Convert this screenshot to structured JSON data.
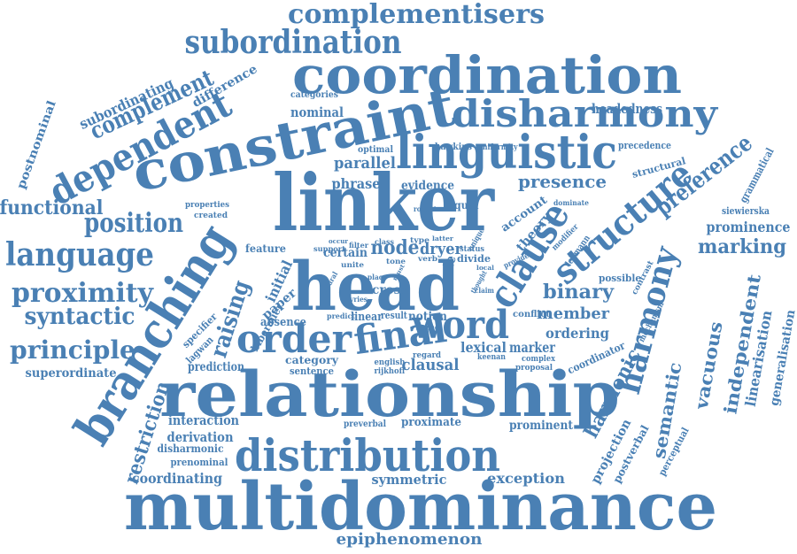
{
  "color": "#4a80b4",
  "words": [
    {
      "id": "multidominance",
      "text": "multidominance"
    },
    {
      "id": "relationship",
      "text": "relationship"
    },
    {
      "id": "linker",
      "text": "linker"
    },
    {
      "id": "head",
      "text": "head"
    },
    {
      "id": "coordination",
      "text": "coordination"
    },
    {
      "id": "constraint",
      "text": "constraint"
    },
    {
      "id": "distribution",
      "text": "distribution"
    },
    {
      "id": "branching",
      "text": "branching"
    },
    {
      "id": "disharmony",
      "text": "disharmony"
    },
    {
      "id": "linguistic",
      "text": "linguistic"
    },
    {
      "id": "clause",
      "text": "clause"
    },
    {
      "id": "structure",
      "text": "structure"
    },
    {
      "id": "harmony",
      "text": "harmony"
    },
    {
      "id": "order",
      "text": "order"
    },
    {
      "id": "final",
      "text": "final"
    },
    {
      "id": "word",
      "text": "word"
    },
    {
      "id": "dependent",
      "text": "dependent"
    },
    {
      "id": "subordination",
      "text": "subordination"
    },
    {
      "id": "complementisers",
      "text": "complementisers"
    },
    {
      "id": "language",
      "text": "language"
    },
    {
      "id": "proximity",
      "text": "proximity"
    },
    {
      "id": "position",
      "text": "position"
    },
    {
      "id": "principle",
      "text": "principle"
    },
    {
      "id": "syntactic",
      "text": "syntactic"
    },
    {
      "id": "functional",
      "text": "functional"
    },
    {
      "id": "complement",
      "text": "complement"
    },
    {
      "id": "subordinating",
      "text": "subordinating"
    },
    {
      "id": "postnominal",
      "text": "postnominal"
    },
    {
      "id": "difference",
      "text": "difference"
    },
    {
      "id": "superordinate",
      "text": "superordinate"
    },
    {
      "id": "restriction",
      "text": "restriction"
    },
    {
      "id": "raising",
      "text": "raising"
    },
    {
      "id": "parallel",
      "text": "parallel"
    },
    {
      "id": "phrase",
      "text": "phrase"
    },
    {
      "id": "presence",
      "text": "presence"
    },
    {
      "id": "headedness",
      "text": "headedness"
    },
    {
      "id": "categories",
      "text": "categories"
    },
    {
      "id": "nominal",
      "text": "nominal"
    },
    {
      "id": "optimal",
      "text": "optimal"
    },
    {
      "id": "hawkins",
      "text": "hawkins"
    },
    {
      "id": "uniformity",
      "text": "uniformity"
    },
    {
      "id": "precedence",
      "text": "precedence"
    },
    {
      "id": "structural",
      "text": "structural"
    },
    {
      "id": "preference",
      "text": "preference"
    },
    {
      "id": "grammatical",
      "text": "grammatical"
    },
    {
      "id": "siewierska",
      "text": "siewierska"
    },
    {
      "id": "prominence",
      "text": "prominence"
    },
    {
      "id": "marking",
      "text": "marking"
    },
    {
      "id": "independent",
      "text": "independent"
    },
    {
      "id": "linearisation",
      "text": "linearisation"
    },
    {
      "id": "generalisation",
      "text": "generalisation"
    },
    {
      "id": "vacuous",
      "text": "vacuous"
    },
    {
      "id": "semantic",
      "text": "semantic"
    },
    {
      "id": "harmonic",
      "text": "harmonic"
    },
    {
      "id": "binary",
      "text": "binary"
    },
    {
      "id": "member",
      "text": "member"
    },
    {
      "id": "ordering",
      "text": "ordering"
    },
    {
      "id": "possible",
      "text": "possible"
    },
    {
      "id": "coordinator",
      "text": "coordinator"
    },
    {
      "id": "theory",
      "text": "theory"
    },
    {
      "id": "account",
      "text": "account"
    },
    {
      "id": "evidence",
      "text": "evidence"
    },
    {
      "id": "equal",
      "text": "equal"
    },
    {
      "id": "node",
      "text": "node"
    },
    {
      "id": "dryer",
      "text": "dryer"
    },
    {
      "id": "rule",
      "text": "rule"
    },
    {
      "id": "divide",
      "text": "divide"
    },
    {
      "id": "certain",
      "text": "certain"
    },
    {
      "id": "initial",
      "text": "initial"
    },
    {
      "id": "paper",
      "text": "paper"
    },
    {
      "id": "biberauer",
      "text": "biberauer"
    },
    {
      "id": "feature",
      "text": "feature"
    },
    {
      "id": "properties",
      "text": "properties"
    },
    {
      "id": "created",
      "text": "created"
    },
    {
      "id": "cross",
      "text": "cross"
    },
    {
      "id": "notion",
      "text": "notion"
    },
    {
      "id": "absence",
      "text": "absence"
    },
    {
      "id": "linear",
      "text": "linear"
    },
    {
      "id": "result",
      "text": "result"
    },
    {
      "id": "lexical",
      "text": "lexical"
    },
    {
      "id": "marker",
      "text": "marker"
    },
    {
      "id": "clausal",
      "text": "clausal"
    },
    {
      "id": "category",
      "text": "category"
    },
    {
      "id": "sentence",
      "text": "sentence"
    },
    {
      "id": "prediction",
      "text": "prediction"
    },
    {
      "id": "specifier",
      "text": "specifier"
    },
    {
      "id": "lagwan",
      "text": "lagwan"
    },
    {
      "id": "interaction",
      "text": "interaction"
    },
    {
      "id": "derivation",
      "text": "derivation"
    },
    {
      "id": "disharmonic",
      "text": "disharmonic"
    },
    {
      "id": "prenominal",
      "text": "prenominal"
    },
    {
      "id": "coordinating",
      "text": "coordinating"
    },
    {
      "id": "symmetric",
      "text": "symmetric"
    },
    {
      "id": "exception",
      "text": "exception"
    },
    {
      "id": "proximate",
      "text": "proximate"
    },
    {
      "id": "prominent",
      "text": "prominent"
    },
    {
      "id": "preverbal",
      "text": "preverbal"
    },
    {
      "id": "projection",
      "text": "projection"
    },
    {
      "id": "postverbal",
      "text": "postverbal"
    },
    {
      "id": "perceptual",
      "text": "perceptual"
    },
    {
      "id": "mechanism",
      "text": "mechanism"
    },
    {
      "id": "contrast",
      "text": "contrast"
    },
    {
      "id": "epiphenomenon",
      "text": "epiphenomenon"
    },
    {
      "id": "conflict",
      "text": "conflict"
    },
    {
      "id": "proposal",
      "text": "proposal"
    },
    {
      "id": "complex",
      "text": "complex"
    },
    {
      "id": "keenan",
      "text": "keenan"
    },
    {
      "id": "english",
      "text": "english"
    },
    {
      "id": "rijkhoff",
      "text": "rijkhoff"
    },
    {
      "id": "regard",
      "text": "regard"
    },
    {
      "id": "borne",
      "text": "borne"
    },
    {
      "id": "predict",
      "text": "predict"
    },
    {
      "id": "unite",
      "text": "unite"
    },
    {
      "id": "support",
      "text": "support"
    },
    {
      "id": "occur",
      "text": "occur"
    },
    {
      "id": "filter",
      "text": "filter"
    },
    {
      "id": "class",
      "text": "class"
    },
    {
      "id": "tone",
      "text": "tone"
    },
    {
      "id": "verb",
      "text": "verb"
    },
    {
      "id": "type",
      "text": "type"
    },
    {
      "id": "latter",
      "text": "latter"
    },
    {
      "id": "status",
      "text": "status"
    },
    {
      "id": "unique",
      "text": "unique"
    },
    {
      "id": "robust",
      "text": "robust"
    },
    {
      "id": "dominate",
      "text": "dominate"
    },
    {
      "id": "modifier",
      "text": "modifier"
    },
    {
      "id": "provide",
      "text": "provide"
    },
    {
      "id": "lehmann",
      "text": "lehmann"
    },
    {
      "id": "place",
      "text": "place"
    },
    {
      "id": "natural",
      "text": "natural"
    },
    {
      "id": "vries",
      "text": "vries"
    },
    {
      "id": "claim",
      "text": "claim"
    },
    {
      "id": "thought",
      "text": "thought"
    },
    {
      "id": "must",
      "text": "must"
    },
    {
      "id": "local",
      "text": "local"
    }
  ]
}
